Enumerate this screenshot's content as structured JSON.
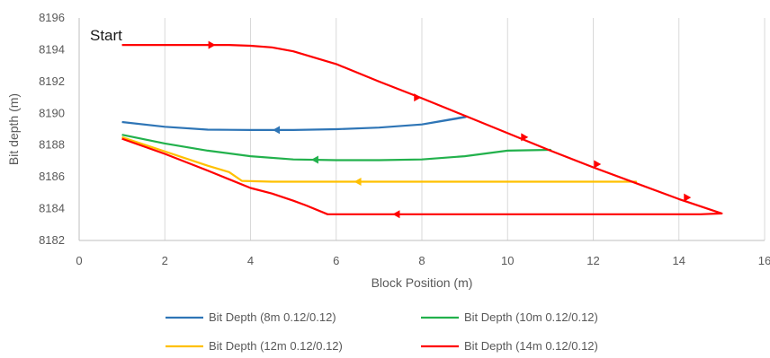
{
  "chart_data": {
    "type": "line",
    "xlabel": "Block Position (m)",
    "ylabel": "Bit depth (m)",
    "xlim": [
      0,
      16
    ],
    "ylim": [
      8182,
      8196
    ],
    "x_ticks": [
      0,
      2,
      4,
      6,
      8,
      10,
      12,
      14,
      16
    ],
    "y_ticks": [
      8182,
      8184,
      8186,
      8188,
      8190,
      8192,
      8194,
      8196
    ],
    "x_tick_labels": [
      "0",
      "2",
      "4",
      "6",
      "8",
      "10",
      "12",
      "14",
      "16"
    ],
    "y_tick_labels": [
      "8182",
      "8184",
      "8186",
      "8188",
      "8190",
      "8192",
      "8194",
      "8196"
    ],
    "grid": "vertical",
    "legend_position": "bottom",
    "annotations": [
      {
        "text": "Start",
        "x": 0.3,
        "y": 8195.3
      }
    ],
    "series": [
      {
        "name": "Bit Depth (8m 0.12/0.12)",
        "color": "#2E75B6",
        "x": [
          1,
          2,
          3,
          4,
          5,
          6,
          7,
          8,
          9,
          9.05,
          8,
          7,
          6,
          5,
          4,
          3,
          2,
          1
        ],
        "y": [
          8189.45,
          8189.15,
          8188.97,
          8188.95,
          8188.95,
          8189.0,
          8189.1,
          8189.3,
          8189.75,
          8189.8,
          8189.3,
          8189.1,
          8189.0,
          8188.95,
          8188.95,
          8188.97,
          8189.15,
          8189.45
        ],
        "arrows": [
          {
            "x": 4.6,
            "y": 8188.95,
            "dir": -1
          }
        ]
      },
      {
        "name": "Bit Depth (10m 0.12/0.12)",
        "color": "#22B14C",
        "x": [
          1,
          2,
          3,
          4,
          5,
          6,
          7,
          8,
          9,
          10,
          11,
          10,
          9,
          8,
          7,
          6,
          5,
          4,
          3,
          2,
          1
        ],
        "y": [
          8188.65,
          8188.1,
          8187.65,
          8187.3,
          8187.1,
          8187.05,
          8187.05,
          8187.1,
          8187.3,
          8187.65,
          8187.7,
          8187.65,
          8187.3,
          8187.1,
          8187.05,
          8187.05,
          8187.1,
          8187.3,
          8187.65,
          8188.1,
          8188.65
        ],
        "arrows": [
          {
            "x": 5.5,
            "y": 8187.08,
            "dir": -1
          }
        ]
      },
      {
        "name": "Bit Depth (12m 0.12/0.12)",
        "color": "#FFC000",
        "x": [
          1,
          2,
          3,
          3.5,
          3.8,
          4.5,
          6,
          8,
          10,
          12,
          13,
          12,
          10,
          8,
          6,
          4.5,
          3.8,
          3.5,
          3,
          2,
          1
        ],
        "y": [
          8188.5,
          8187.6,
          8186.7,
          8186.3,
          8185.75,
          8185.7,
          8185.7,
          8185.7,
          8185.7,
          8185.7,
          8185.7,
          8185.7,
          8185.7,
          8185.7,
          8185.7,
          8185.7,
          8185.75,
          8186.3,
          8186.7,
          8187.6,
          8188.5
        ],
        "arrows": [
          {
            "x": 6.5,
            "y": 8185.7,
            "dir": -1
          }
        ]
      },
      {
        "name": "Bit Depth (14m 0.12/0.12)",
        "color": "#FF0000",
        "x": [
          1,
          2,
          3,
          3.5,
          4,
          4.5,
          5,
          5.5,
          6,
          7,
          8,
          9,
          10,
          11,
          12,
          13,
          14,
          15,
          14.5,
          13,
          11,
          9,
          7,
          5.8,
          5.3,
          5.0,
          4.5,
          4.0,
          3.5,
          3.0,
          2,
          1
        ],
        "y": [
          8194.3,
          8194.3,
          8194.3,
          8194.3,
          8194.25,
          8194.15,
          8193.9,
          8193.5,
          8193.1,
          8192.0,
          8190.95,
          8189.85,
          8188.75,
          8187.65,
          8186.6,
          8185.6,
          8184.6,
          8183.7,
          8183.65,
          8183.65,
          8183.65,
          8183.65,
          8183.65,
          8183.65,
          8184.2,
          8184.5,
          8184.95,
          8185.3,
          8185.85,
          8186.4,
          8187.45,
          8188.4
        ],
        "arrows": [
          {
            "x": 3.1,
            "y": 8194.3,
            "dir": 1
          },
          {
            "x": 7.9,
            "y": 8191.0,
            "dir": 1
          },
          {
            "x": 10.4,
            "y": 8188.5,
            "dir": 1
          },
          {
            "x": 12.1,
            "y": 8186.8,
            "dir": 1
          },
          {
            "x": 14.2,
            "y": 8184.7,
            "dir": 1
          },
          {
            "x": 7.4,
            "y": 8183.65,
            "dir": -1
          }
        ]
      }
    ]
  }
}
